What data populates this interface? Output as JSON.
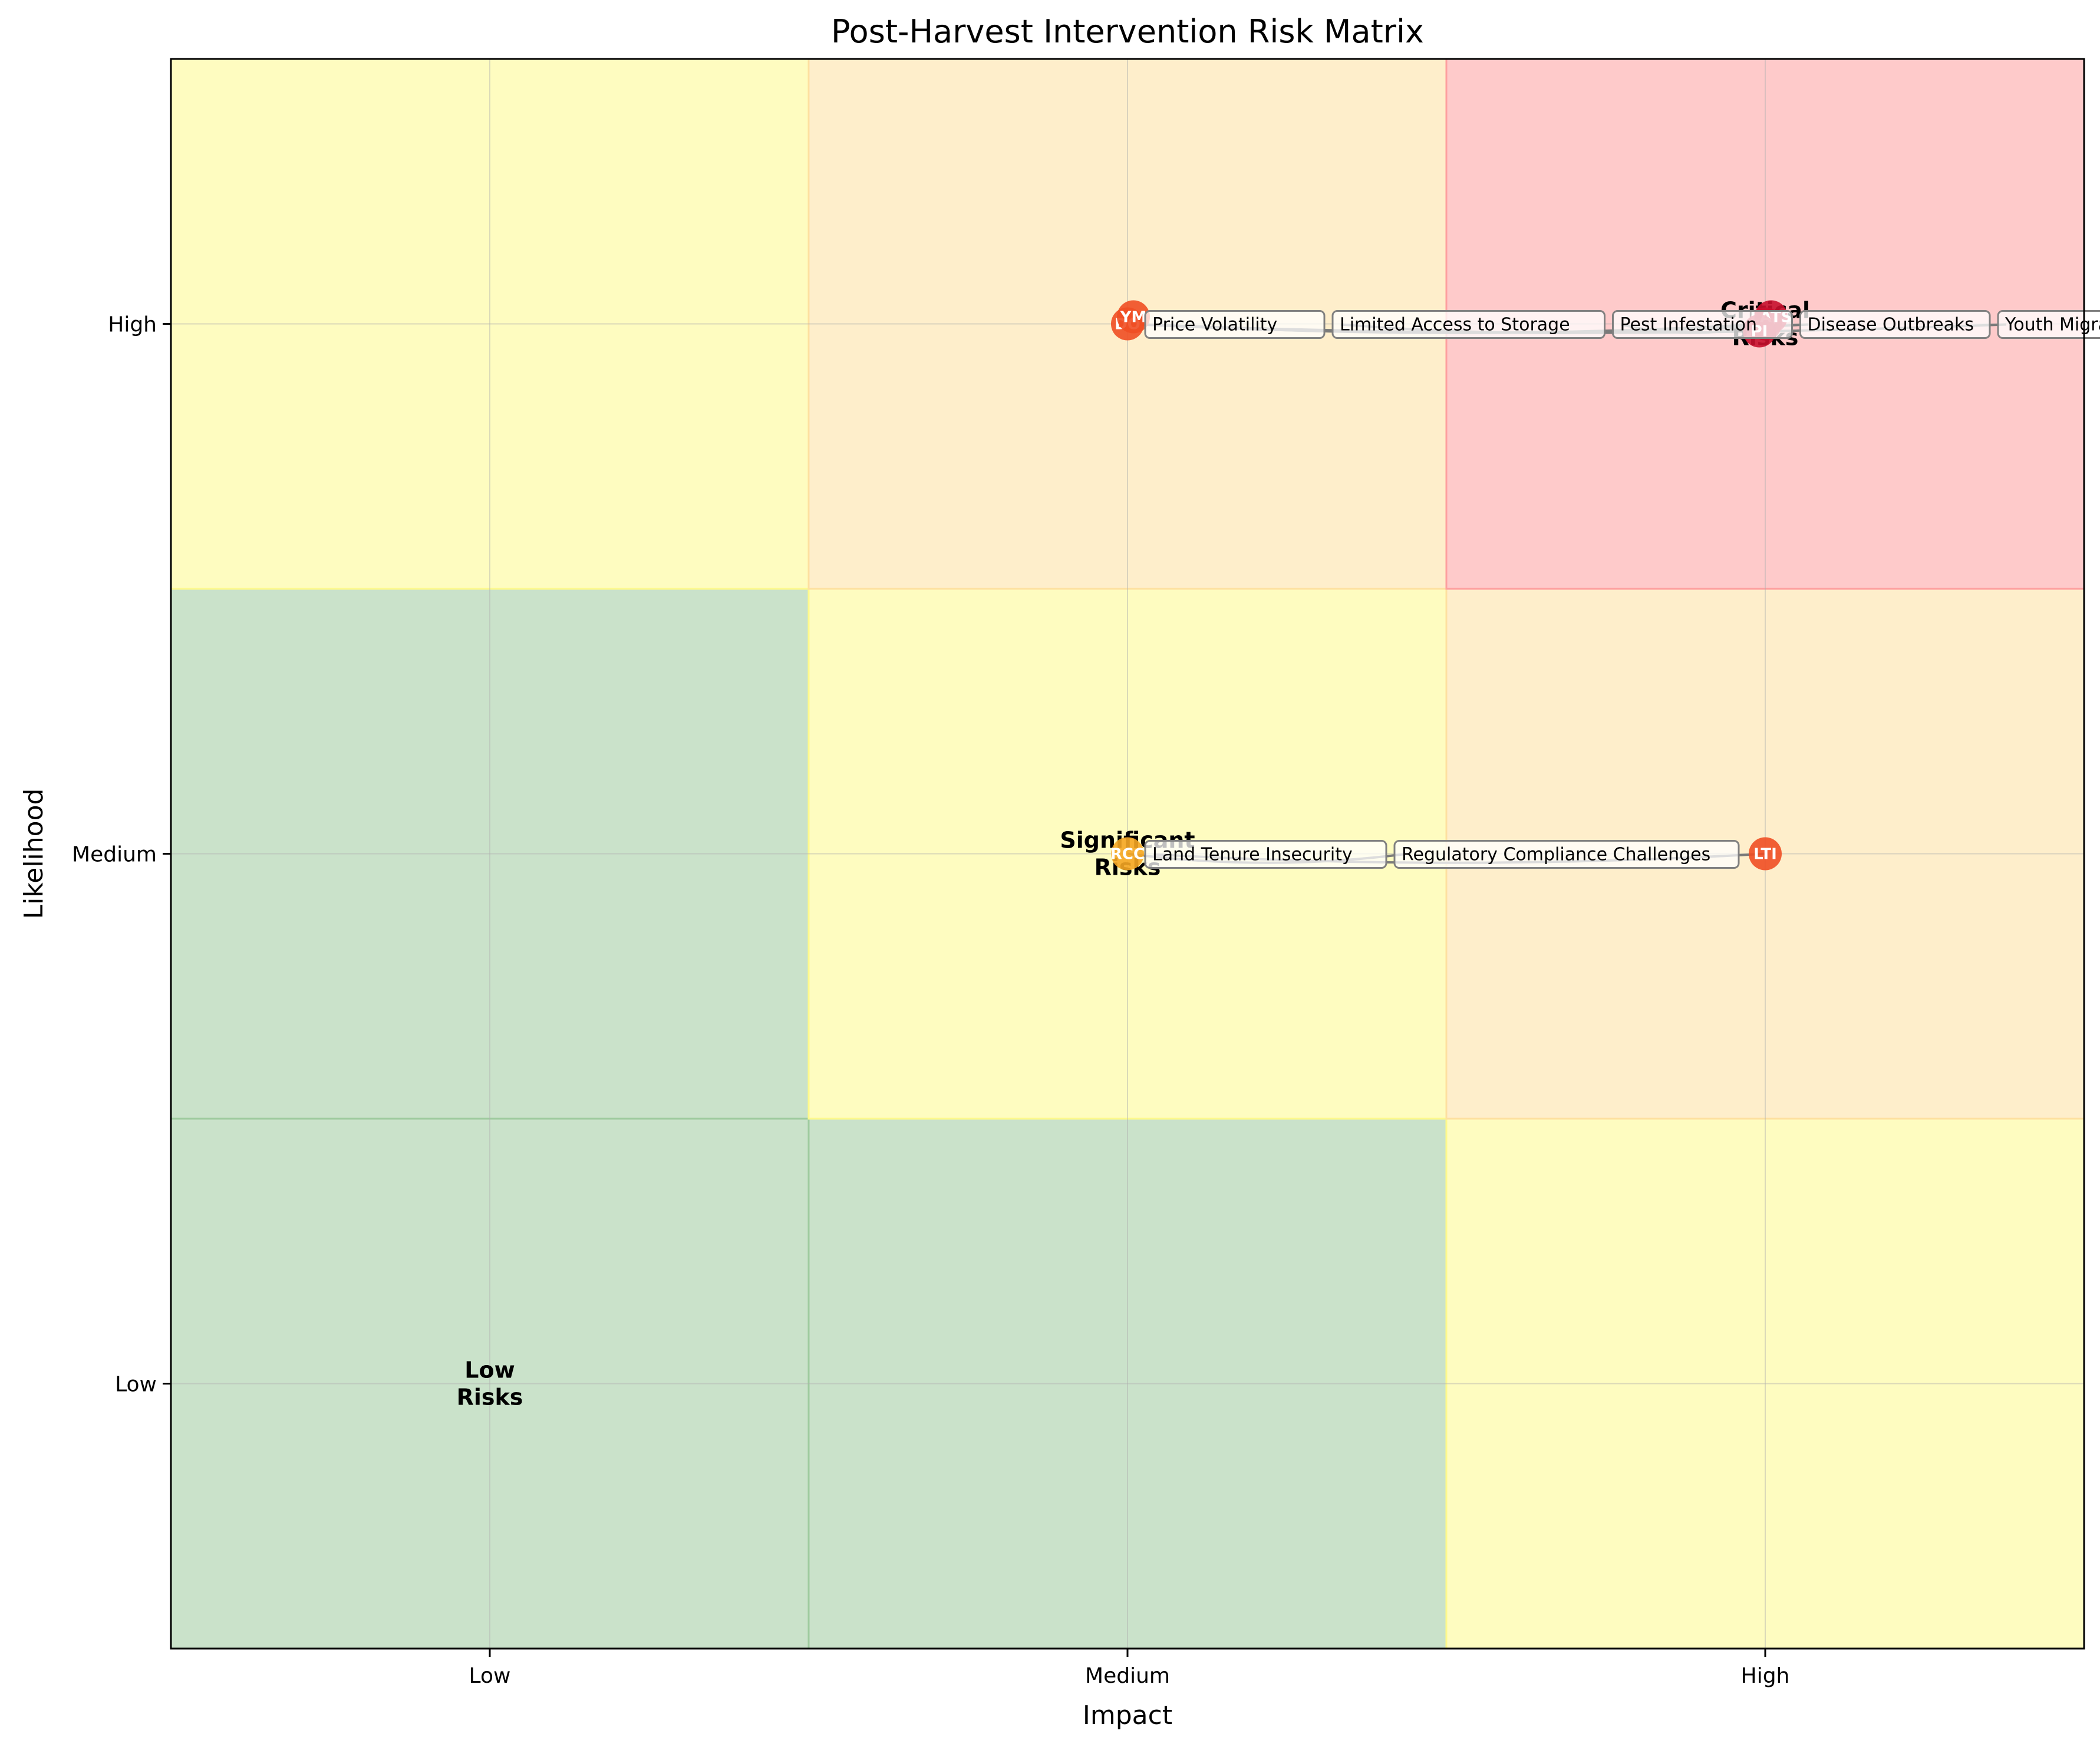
{
  "chart_data": {
    "type": "scatter",
    "title": "Post-Harvest Intervention Risk Matrix",
    "xlabel": "Impact",
    "ylabel": "Likelihood",
    "x_categories": [
      "Low",
      "Medium",
      "High"
    ],
    "y_categories": [
      "Low",
      "Medium",
      "High"
    ],
    "grid": true,
    "cells": [
      {
        "impact": 1,
        "likelihood": 1,
        "color": "#9fcb9f"
      },
      {
        "impact": 2,
        "likelihood": 1,
        "color": "#9fcb9f"
      },
      {
        "impact": 3,
        "likelihood": 1,
        "color": "#fdf98c"
      },
      {
        "impact": 1,
        "likelihood": 2,
        "color": "#9fcb9f"
      },
      {
        "impact": 2,
        "likelihood": 2,
        "color": "#fdf98c"
      },
      {
        "impact": 3,
        "likelihood": 2,
        "color": "#fde0a0"
      },
      {
        "impact": 1,
        "likelihood": 3,
        "color": "#fdf98c"
      },
      {
        "impact": 2,
        "likelihood": 3,
        "color": "#fde0a0"
      },
      {
        "impact": 3,
        "likelihood": 3,
        "color": "#fd9f9f"
      }
    ],
    "zone_labels": [
      {
        "text": "Critical\nRisks",
        "impact": 3,
        "likelihood": 3
      },
      {
        "text": "Significant\nRisks",
        "impact": 2,
        "likelihood": 2
      },
      {
        "text": "Low\nRisks",
        "impact": 1,
        "likelihood": 1
      }
    ],
    "risks": [
      {
        "name": "Price Volatility",
        "impact": 3,
        "likelihood": 3,
        "color": "#c8102e"
      },
      {
        "name": "Limited Access to Storage",
        "impact": 3,
        "likelihood": 3,
        "color": "#c8102e"
      },
      {
        "name": "Pest Infestation",
        "impact": 3,
        "likelihood": 3,
        "color": "#c8102e"
      },
      {
        "name": "Disease Outbreaks",
        "impact": 2,
        "likelihood": 3,
        "color": "#f04e23"
      },
      {
        "name": "Youth Migration",
        "impact": 2,
        "likelihood": 3,
        "color": "#f04e23"
      },
      {
        "name": "Land Tenure Insecurity",
        "impact": 3,
        "likelihood": 2,
        "color": "#f04e23"
      },
      {
        "name": "Regulatory Compliance Challenges",
        "impact": 2,
        "likelihood": 2,
        "color": "#f5a623"
      }
    ]
  }
}
